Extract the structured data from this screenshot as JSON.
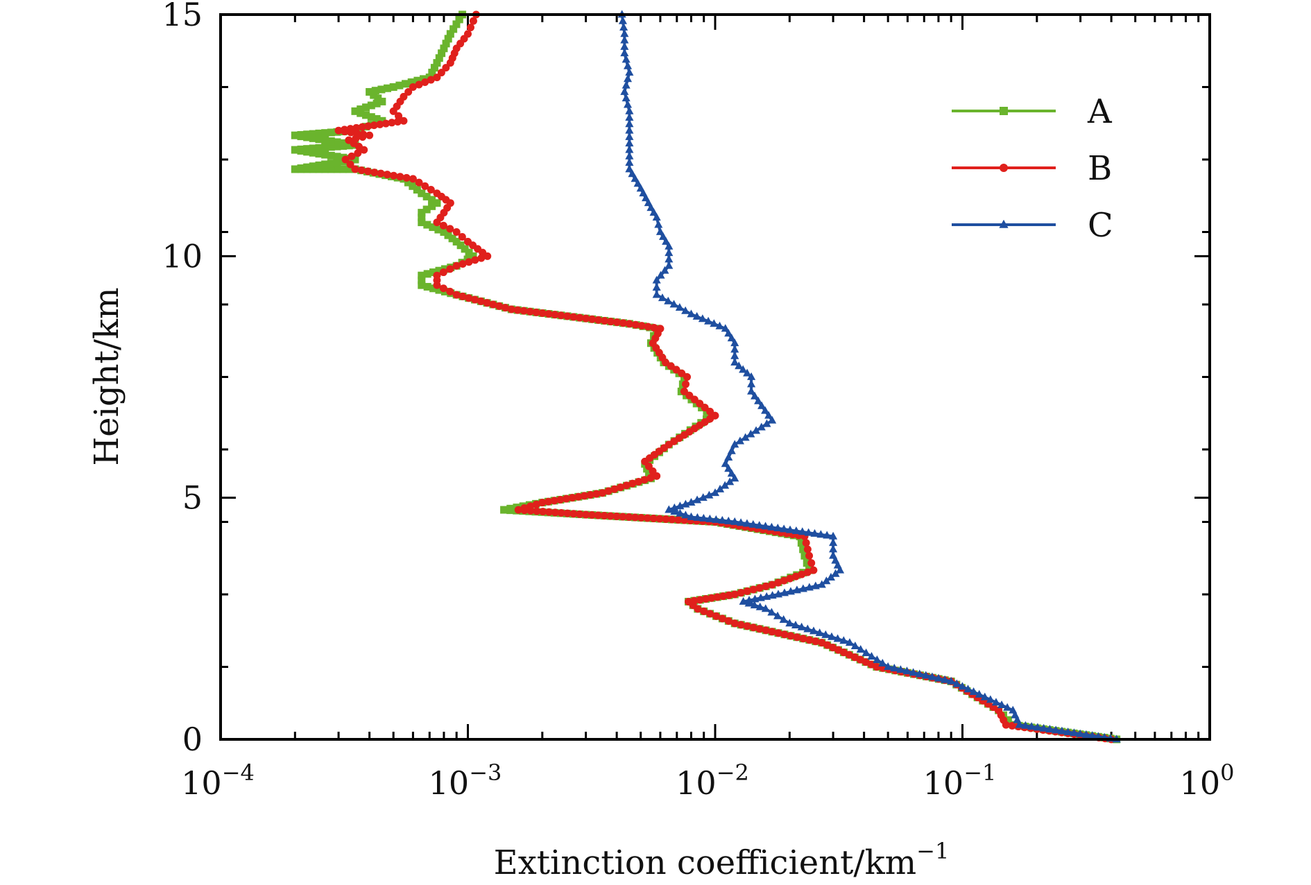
{
  "chart_data": {
    "type": "line",
    "title": "",
    "xlabel": "Extinction coefficient/km",
    "xlabel_exponent": "−1",
    "ylabel": "Height/km",
    "xscale": "log",
    "xlim": [
      0.0001,
      1
    ],
    "ylim": [
      0,
      15
    ],
    "x_ticks": [
      {
        "value": 0.0001,
        "base": "10",
        "exp": "−4"
      },
      {
        "value": 0.001,
        "base": "10",
        "exp": "−3"
      },
      {
        "value": 0.01,
        "base": "10",
        "exp": "−2"
      },
      {
        "value": 0.1,
        "base": "10",
        "exp": "−1"
      },
      {
        "value": 1,
        "base": "10",
        "exp": "0"
      }
    ],
    "y_ticks": [
      {
        "value": 0,
        "label": "0"
      },
      {
        "value": 5,
        "label": "5"
      },
      {
        "value": 10,
        "label": "10"
      },
      {
        "value": 15,
        "label": "15"
      }
    ],
    "legend_position": "top-right",
    "series": [
      {
        "name": "A",
        "color": "#6ab42d",
        "marker": "square",
        "points": [
          [
            0.42,
            0
          ],
          [
            0.16,
            0.3
          ],
          [
            0.14,
            0.6
          ],
          [
            0.09,
            1.2
          ],
          [
            0.045,
            1.5
          ],
          [
            0.027,
            2.0
          ],
          [
            0.012,
            2.4
          ],
          [
            0.0085,
            2.7
          ],
          [
            0.0078,
            2.85
          ],
          [
            0.012,
            3.0
          ],
          [
            0.017,
            3.2
          ],
          [
            0.024,
            3.5
          ],
          [
            0.023,
            3.8
          ],
          [
            0.022,
            4.2
          ],
          [
            0.01,
            4.5
          ],
          [
            0.003,
            4.65
          ],
          [
            0.0014,
            4.75
          ],
          [
            0.002,
            4.9
          ],
          [
            0.0035,
            5.1
          ],
          [
            0.0055,
            5.4
          ],
          [
            0.0052,
            5.7
          ],
          [
            0.0065,
            6.1
          ],
          [
            0.0097,
            6.7
          ],
          [
            0.0073,
            7.2
          ],
          [
            0.0075,
            7.5
          ],
          [
            0.0062,
            7.8
          ],
          [
            0.0055,
            8.2
          ],
          [
            0.0058,
            8.5
          ],
          [
            0.0045,
            8.6
          ],
          [
            0.0015,
            8.9
          ],
          [
            0.0009,
            9.2
          ],
          [
            0.00065,
            9.4
          ],
          [
            0.00065,
            9.6
          ],
          [
            0.0009,
            9.8
          ],
          [
            0.00105,
            10.0
          ],
          [
            0.0009,
            10.3
          ],
          [
            0.0008,
            10.5
          ],
          [
            0.00065,
            10.7
          ],
          [
            0.00065,
            10.9
          ],
          [
            0.00075,
            11.1
          ],
          [
            0.00065,
            11.3
          ],
          [
            0.00055,
            11.6
          ],
          [
            0.00035,
            11.8
          ],
          [
            0.0002,
            11.8
          ],
          [
            0.00035,
            12.0
          ],
          [
            0.0002,
            12.2
          ],
          [
            0.00035,
            12.3
          ],
          [
            0.0002,
            12.5
          ],
          [
            0.00035,
            12.6
          ],
          [
            0.00045,
            12.8
          ],
          [
            0.00035,
            13.0
          ],
          [
            0.00045,
            13.2
          ],
          [
            0.0004,
            13.4
          ],
          [
            0.0005,
            13.5
          ],
          [
            0.0007,
            13.7
          ],
          [
            0.00075,
            14.0
          ],
          [
            0.0008,
            14.3
          ],
          [
            0.00085,
            14.6
          ],
          [
            0.00095,
            15.0
          ]
        ]
      },
      {
        "name": "B",
        "color": "#e0201c",
        "marker": "circle",
        "points": [
          [
            0.4,
            0
          ],
          [
            0.15,
            0.3
          ],
          [
            0.14,
            0.6
          ],
          [
            0.09,
            1.2
          ],
          [
            0.045,
            1.5
          ],
          [
            0.027,
            2.0
          ],
          [
            0.012,
            2.4
          ],
          [
            0.0085,
            2.7
          ],
          [
            0.0078,
            2.85
          ],
          [
            0.012,
            3.0
          ],
          [
            0.017,
            3.2
          ],
          [
            0.025,
            3.5
          ],
          [
            0.024,
            3.8
          ],
          [
            0.023,
            4.2
          ],
          [
            0.01,
            4.5
          ],
          [
            0.003,
            4.65
          ],
          [
            0.0016,
            4.75
          ],
          [
            0.002,
            4.9
          ],
          [
            0.0035,
            5.1
          ],
          [
            0.0058,
            5.45
          ],
          [
            0.0052,
            5.75
          ],
          [
            0.0065,
            6.1
          ],
          [
            0.01,
            6.7
          ],
          [
            0.0075,
            7.2
          ],
          [
            0.0077,
            7.5
          ],
          [
            0.0063,
            7.8
          ],
          [
            0.0056,
            8.2
          ],
          [
            0.006,
            8.5
          ],
          [
            0.0045,
            8.6
          ],
          [
            0.0015,
            8.9
          ],
          [
            0.0009,
            9.2
          ],
          [
            0.00075,
            9.4
          ],
          [
            0.00075,
            9.6
          ],
          [
            0.0009,
            9.8
          ],
          [
            0.0012,
            10.0
          ],
          [
            0.001,
            10.3
          ],
          [
            0.0009,
            10.5
          ],
          [
            0.00075,
            10.7
          ],
          [
            0.0008,
            10.9
          ],
          [
            0.00085,
            11.1
          ],
          [
            0.00075,
            11.3
          ],
          [
            0.0006,
            11.6
          ],
          [
            0.00035,
            11.8
          ],
          [
            0.00032,
            12.0
          ],
          [
            0.00038,
            12.2
          ],
          [
            0.00033,
            12.4
          ],
          [
            0.0004,
            12.5
          ],
          [
            0.0003,
            12.6
          ],
          [
            0.00055,
            12.8
          ],
          [
            0.0005,
            13.0
          ],
          [
            0.00055,
            13.3
          ],
          [
            0.0006,
            13.5
          ],
          [
            0.00075,
            13.7
          ],
          [
            0.00085,
            14.0
          ],
          [
            0.0009,
            14.3
          ],
          [
            0.001,
            14.6
          ],
          [
            0.00108,
            15.0
          ]
        ]
      },
      {
        "name": "C",
        "color": "#1f4fa0",
        "marker": "triangle",
        "points": [
          [
            0.42,
            0
          ],
          [
            0.17,
            0.3
          ],
          [
            0.16,
            0.6
          ],
          [
            0.09,
            1.2
          ],
          [
            0.05,
            1.5
          ],
          [
            0.035,
            2.0
          ],
          [
            0.02,
            2.4
          ],
          [
            0.016,
            2.7
          ],
          [
            0.013,
            2.85
          ],
          [
            0.018,
            3.0
          ],
          [
            0.027,
            3.2
          ],
          [
            0.032,
            3.5
          ],
          [
            0.03,
            3.8
          ],
          [
            0.03,
            4.2
          ],
          [
            0.012,
            4.5
          ],
          [
            0.008,
            4.6
          ],
          [
            0.0065,
            4.75
          ],
          [
            0.008,
            4.9
          ],
          [
            0.01,
            5.1
          ],
          [
            0.012,
            5.4
          ],
          [
            0.011,
            5.7
          ],
          [
            0.012,
            6.1
          ],
          [
            0.017,
            6.6
          ],
          [
            0.014,
            7.2
          ],
          [
            0.014,
            7.5
          ],
          [
            0.012,
            7.8
          ],
          [
            0.012,
            8.2
          ],
          [
            0.011,
            8.5
          ],
          [
            0.008,
            8.8
          ],
          [
            0.0058,
            9.2
          ],
          [
            0.0058,
            9.5
          ],
          [
            0.0065,
            9.8
          ],
          [
            0.0065,
            10.2
          ],
          [
            0.006,
            10.5
          ],
          [
            0.0058,
            10.8
          ],
          [
            0.0055,
            11.0
          ],
          [
            0.005,
            11.4
          ],
          [
            0.0045,
            11.8
          ],
          [
            0.0045,
            12.2
          ],
          [
            0.0045,
            12.6
          ],
          [
            0.0045,
            13.0
          ],
          [
            0.0043,
            13.4
          ],
          [
            0.0045,
            13.8
          ],
          [
            0.0043,
            14.2
          ],
          [
            0.0043,
            14.6
          ],
          [
            0.0042,
            15.0
          ]
        ]
      }
    ]
  }
}
